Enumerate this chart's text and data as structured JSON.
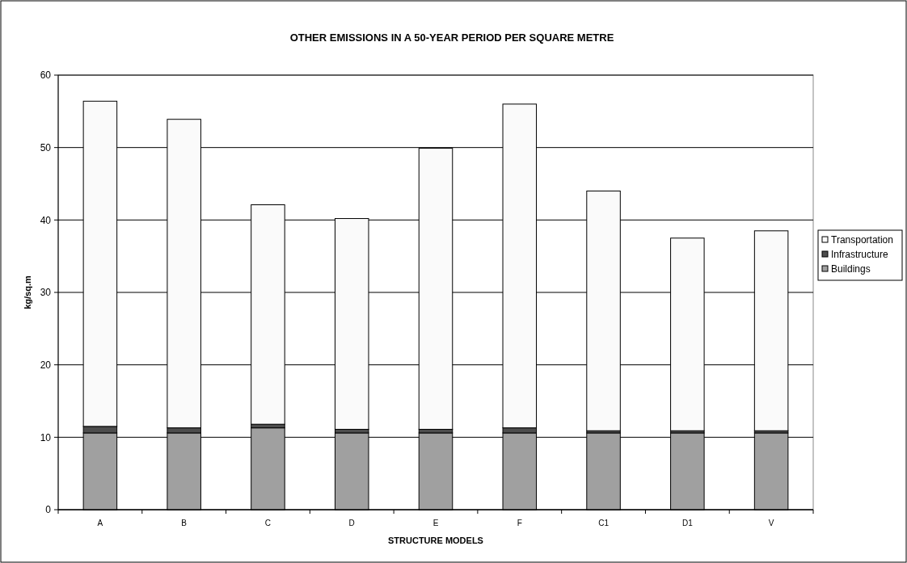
{
  "chart_data": {
    "type": "bar",
    "title": "OTHER EMISSIONS IN A 50-YEAR PERIOD PER SQUARE METRE",
    "xlabel": "STRUCTURE MODELS",
    "ylabel": "kg/sq.m",
    "categories": [
      "A",
      "B",
      "C",
      "D",
      "E",
      "F",
      "C1",
      "D1",
      "V"
    ],
    "stacked": true,
    "series": [
      {
        "name": "Buildings",
        "color": "#a0a0a0",
        "values": [
          10.6,
          10.6,
          11.3,
          10.6,
          10.6,
          10.6,
          10.6,
          10.6,
          10.6
        ]
      },
      {
        "name": "Infrastructure",
        "color": "#4d4d4d",
        "values": [
          0.9,
          0.7,
          0.5,
          0.5,
          0.5,
          0.7,
          0.3,
          0.3,
          0.3
        ]
      },
      {
        "name": "Transportation",
        "color": "#fafafa",
        "values": [
          44.9,
          42.6,
          30.3,
          29.1,
          38.8,
          44.7,
          33.1,
          26.6,
          27.6
        ]
      }
    ],
    "ylim": [
      0,
      60
    ],
    "yticks": [
      0,
      10,
      20,
      30,
      40,
      50,
      60
    ],
    "grid": "y",
    "legend": "right"
  }
}
